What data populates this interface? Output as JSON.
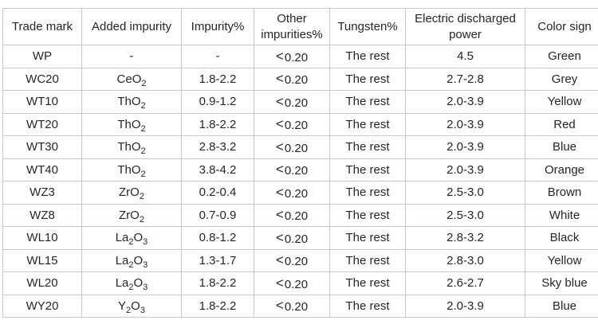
{
  "table": {
    "name": "tungsten-electrode-specification-table",
    "columns": [
      "Trade mark",
      "Added impurity",
      "Impurity%",
      "Other impurities%",
      "Tungsten%",
      "Electric discharged power",
      "Color sign"
    ],
    "column_keys": [
      "trade-mark",
      "added-impurity",
      "impurity-pct",
      "other-impurities-pct",
      "tungsten-pct",
      "electric-discharged-power",
      "color-sign"
    ],
    "rows": [
      [
        "WP",
        "-",
        "-",
        "＜0.20",
        "The rest",
        "4.5",
        "Green"
      ],
      [
        "WC20",
        "CeO₂",
        "1.8-2.2",
        "＜0.20",
        "The rest",
        "2.7-2.8",
        "Grey"
      ],
      [
        "WT10",
        "ThO₂",
        "0.9-1.2",
        "＜0.20",
        "The rest",
        "2.0-3.9",
        "Yellow"
      ],
      [
        "WT20",
        "ThO₂",
        "1.8-2.2",
        "＜0.20",
        "The rest",
        "2.0-3.9",
        "Red"
      ],
      [
        "WT30",
        "ThO₂",
        "2.8-3.2",
        "＜0.20",
        "The rest",
        "2.0-3.9",
        "Blue"
      ],
      [
        "WT40",
        "ThO₂",
        "3.8-4.2",
        "＜0.20",
        "The rest",
        "2.0-3.9",
        "Orange"
      ],
      [
        "WZ3",
        "ZrO₂",
        "0.2-0.4",
        "＜0.20",
        "The rest",
        "2.5-3.0",
        "Brown"
      ],
      [
        "WZ8",
        "ZrO₂",
        "0.7-0.9",
        "＜0.20",
        "The rest",
        "2.5-3.0",
        "White"
      ],
      [
        "WL10",
        "La₂O₃",
        "0.8-1.2",
        "＜0.20",
        "The rest",
        "2.8-3.2",
        "Black"
      ],
      [
        "WL15",
        "La₂O₃",
        "1.3-1.7",
        "＜0.20",
        "The rest",
        "2.8-3.0",
        "Yellow"
      ],
      [
        "WL20",
        "La₂O₃",
        "1.8-2.2",
        "＜0.20",
        "The rest",
        "2.6-2.7",
        "Sky blue"
      ],
      [
        "WY20",
        "Y₂O₃",
        "1.8-2.2",
        "＜0.20",
        "The rest",
        "2.0-3.9",
        "Blue"
      ]
    ],
    "colors": {
      "border": "#c9c9c9",
      "text": "#262626",
      "background": "#ffffff"
    }
  }
}
